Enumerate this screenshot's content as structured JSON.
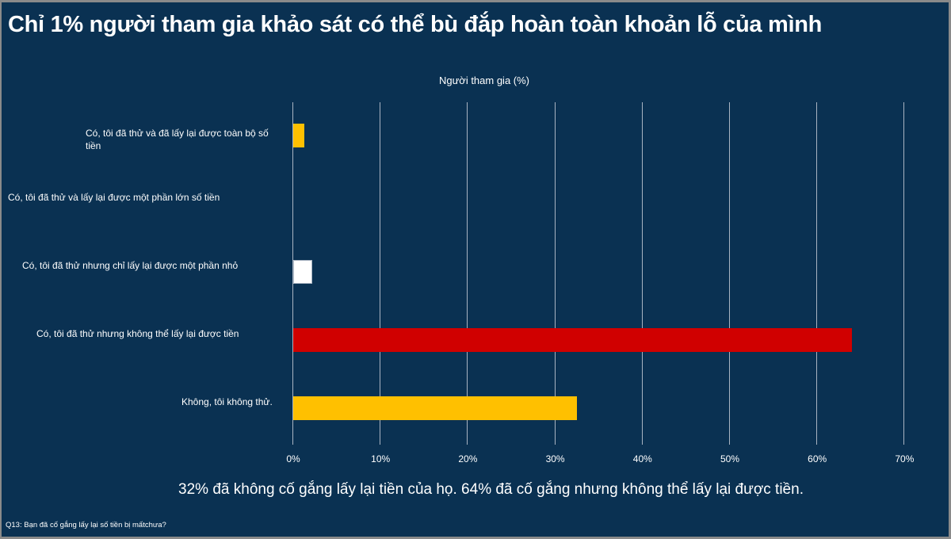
{
  "slide": {
    "title": "Chỉ 1% người tham gia khảo sát có thể bù đắp hoàn toàn khoản lỗ của mình",
    "summary": "32% đã không cố gắng lấy lại tiền của họ. 64% đã cố gắng nhưng không thể lấy lại được tiền.",
    "footnote": "Q13: Bạn đã cố gắng lấy lại số tiền bị mấtchưa?"
  },
  "colors": {
    "background": "#0a3152",
    "yellow": "#ffc000",
    "white": "#ffffff",
    "red": "#d00000",
    "gridline": "#a9b4c2"
  },
  "chart_data": {
    "type": "bar",
    "orientation": "horizontal",
    "title": "Chỉ 1% người tham gia khảo sát có thể bù đắp hoàn toàn khoản lỗ của mình",
    "xlabel": "Người tham gia (%)",
    "ylabel": "",
    "xlim": [
      0,
      70
    ],
    "x_ticks": [
      "0%",
      "10%",
      "20%",
      "30%",
      "40%",
      "50%",
      "60%",
      "70%"
    ],
    "grid": true,
    "legend": null,
    "categories": [
      "Có, tôi đã thử và đã lấy lại được toàn bộ số tiền",
      "Có, tôi đã thử và lấy lại được một phần lớn số tiền",
      "Có, tôi đã thử nhưng chỉ lấy lại được một phần nhỏ",
      "Có, tôi đã thử nhưng không thể lấy lại được tiền",
      "Không, tôi không thử."
    ],
    "values": [
      1.3,
      0,
      2.2,
      64,
      32.5
    ],
    "bar_colors": [
      "#ffc000",
      "#0a3152",
      "#ffffff",
      "#d00000",
      "#ffc000"
    ],
    "annotations": [
      "32% đã không cố gắng lấy lại tiền của họ. 64% đã cố gắng nhưng không thể lấy lại được tiền."
    ]
  }
}
